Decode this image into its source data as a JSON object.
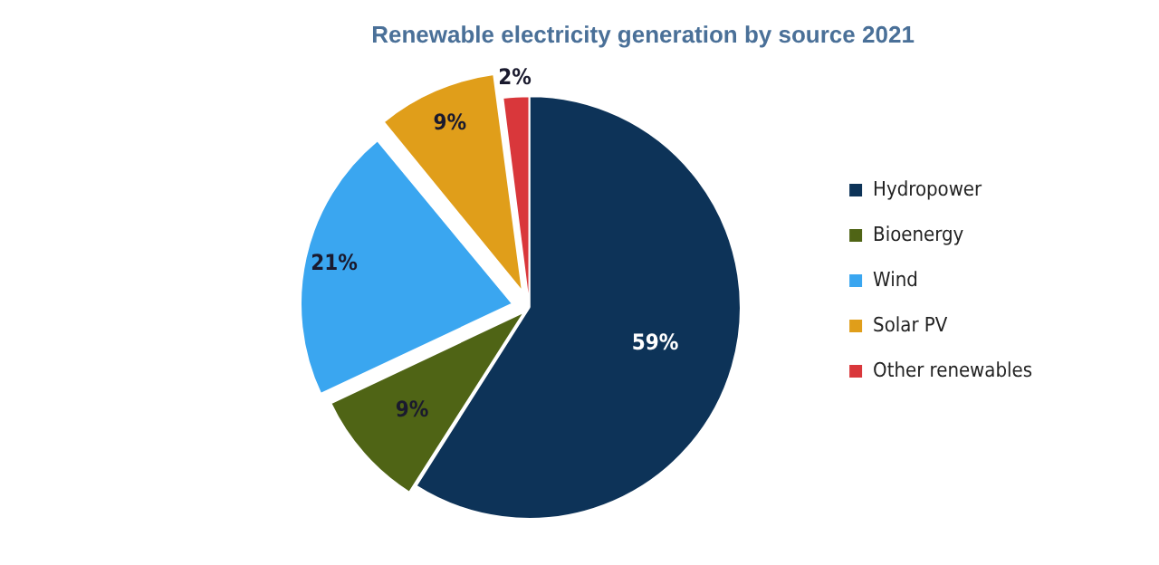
{
  "chart_data": {
    "type": "pie",
    "title": "Renewable electricity generation by source 2021",
    "categories": [
      "Hydropower",
      "Bioenergy",
      "Wind",
      "Solar PV",
      "Other renewables"
    ],
    "values": [
      59,
      9,
      21,
      9,
      2
    ],
    "colors": [
      "#0d3358",
      "#4f6415",
      "#3aa6f0",
      "#e09e1a",
      "#d9373b"
    ],
    "value_labels": [
      "59%",
      "9%",
      "21%",
      "9%",
      "2%"
    ],
    "legend": "right"
  }
}
